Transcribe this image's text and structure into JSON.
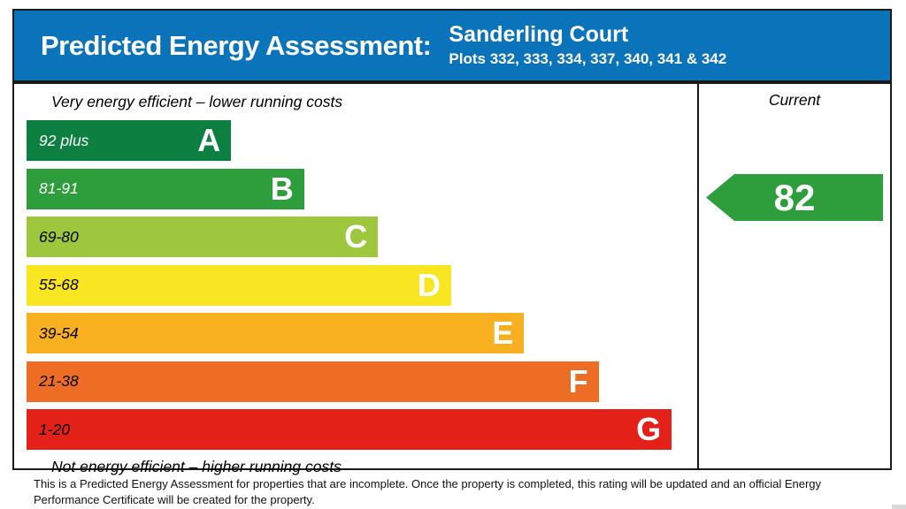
{
  "header": {
    "title": "Predicted Energy Assessment:",
    "property_name": "Sanderling Court",
    "plots_line": "Plots 332, 333, 334, 337, 340, 341 & 342"
  },
  "panel": {
    "top_caption": "Very energy efficient – lower running costs",
    "bottom_caption": "Not energy efficient – higher running costs",
    "current_column_label": "Current"
  },
  "chart_data": {
    "type": "bar",
    "title": "Predicted Energy Assessment",
    "subtitle": "Sanderling Court – Plots 332, 333, 334, 337, 340, 341 & 342",
    "categories": [
      "A",
      "B",
      "C",
      "D",
      "E",
      "F",
      "G"
    ],
    "bands": [
      {
        "letter": "A",
        "range": "92 plus",
        "color": "#0d7f41",
        "label_color": "#ffffff",
        "width_pct": 30.5
      },
      {
        "letter": "B",
        "range": "81-91",
        "color": "#2e9d3c",
        "label_color": "#ffffff",
        "width_pct": 41.4
      },
      {
        "letter": "C",
        "range": "69-80",
        "color": "#9ec73e",
        "label_color": "#000000",
        "width_pct": 52.4
      },
      {
        "letter": "D",
        "range": "55-68",
        "color": "#f9e623",
        "label_color": "#000000",
        "width_pct": 63.3
      },
      {
        "letter": "E",
        "range": "39-54",
        "color": "#f8b021",
        "label_color": "#000000",
        "width_pct": 74.2
      },
      {
        "letter": "F",
        "range": "21-38",
        "color": "#ee6d25",
        "label_color": "#000000",
        "width_pct": 85.3
      },
      {
        "letter": "G",
        "range": "1-20",
        "color": "#e32119",
        "label_color": "#000000",
        "width_pct": 96.2
      }
    ],
    "current": {
      "value": "82",
      "band": "B",
      "color": "#2e9d3c"
    },
    "axis_note": "SAP rating bands 1-100",
    "legend_position": "right-column"
  },
  "footer": {
    "disclaimer": "This is a Predicted Energy Assessment for properties that are incomplete. Once the property is completed, this rating will be updated and an official Energy Performance Certificate will be created for the property."
  },
  "colors": {
    "header_bg": "#0a73ba",
    "border": "#1a1a1a",
    "current_arrow": "#2e9d3c"
  }
}
